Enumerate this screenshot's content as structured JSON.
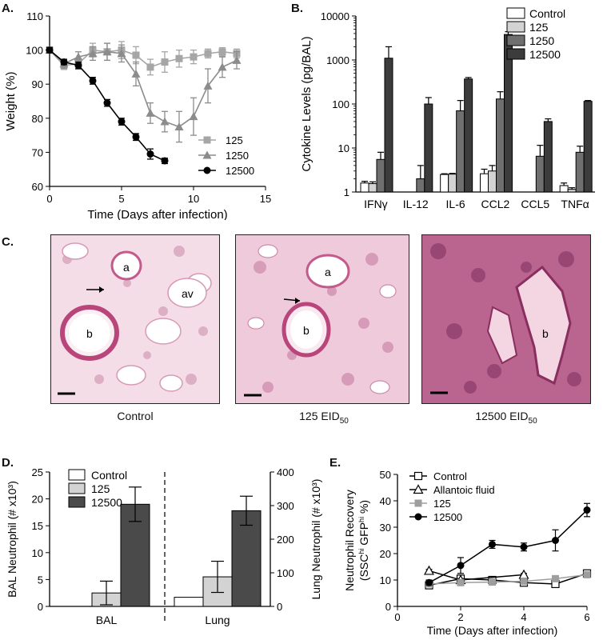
{
  "panels": {
    "A": {
      "label": "A.",
      "chart_data": {
        "type": "line",
        "ylabel": "Weight (%)",
        "xlabel": "Time (Days after infection)",
        "xlim": [
          0,
          15
        ],
        "ylim": [
          60,
          110
        ],
        "xticks": [
          0,
          5,
          10,
          15
        ],
        "yticks": [
          60,
          70,
          80,
          90,
          100,
          110
        ],
        "series": [
          {
            "name": "125",
            "color": "#a6a6a6",
            "marker": "square",
            "x": [
              0,
              1,
              2,
              3,
              4,
              5,
              6,
              7,
              8,
              9,
              10,
              11,
              12,
              13
            ],
            "y": [
              100,
              95.5,
              96,
              100,
              99.5,
              100,
              98.5,
              95,
              96.5,
              97.5,
              98,
              99,
              99.5,
              99
            ],
            "err": [
              0.8,
              1.2,
              1.3,
              2,
              2.5,
              2.5,
              2.5,
              2.3,
              3,
              2.5,
              2,
              1.3,
              1.2,
              1.3
            ]
          },
          {
            "name": "1250",
            "color": "#8c8c8c",
            "marker": "triangle",
            "x": [
              0,
              1,
              2,
              3,
              4,
              5,
              6,
              7,
              8,
              9,
              10,
              11,
              12,
              13
            ],
            "y": [
              100,
              96,
              98,
              99,
              99.5,
              99,
              93,
              81.5,
              79,
              77.5,
              80.5,
              89.5,
              95,
              97
            ],
            "err": [
              0.8,
              1.3,
              1.5,
              2,
              2.5,
              2.5,
              3.5,
              3,
              3,
              4.5,
              5.5,
              5,
              3,
              2.5
            ]
          },
          {
            "name": "12500",
            "color": "#000000",
            "marker": "circle",
            "x": [
              0,
              1,
              2,
              3,
              4,
              5,
              6,
              7,
              8
            ],
            "y": [
              100,
              96.5,
              95.5,
              91,
              84.5,
              79,
              74.5,
              69.5,
              67.5
            ],
            "err": [
              0.8,
              0.8,
              1,
              1,
              1,
              1,
              1,
              1.5,
              0.8
            ]
          }
        ]
      }
    },
    "B": {
      "label": "B.",
      "chart_data": {
        "type": "bar",
        "scale": "log",
        "ylabel": "Cytokine Levels (pg/BAL)",
        "ylim": [
          1,
          10000
        ],
        "yticks": [
          1,
          10,
          100,
          1000,
          10000
        ],
        "categories": [
          "IFNγ",
          "IL-12",
          "IL-6",
          "CCL2",
          "CCL5",
          "TNFα"
        ],
        "series": [
          {
            "name": "Control",
            "color": "#ffffff",
            "values": [
              1.6,
              null,
              2.5,
              2.6,
              null,
              1.4
            ],
            "err": [
              1.75,
              null,
              2.6,
              3.3,
              null,
              1.6
            ]
          },
          {
            "name": "125",
            "color": "#d3d3d3",
            "values": [
              1.55,
              null,
              2.55,
              3,
              null,
              1.15
            ],
            "err": [
              1.7,
              null,
              2.65,
              4,
              null,
              1.25
            ]
          },
          {
            "name": "1250",
            "color": "#6f6f6f",
            "values": [
              5.5,
              2,
              70,
              130,
              6.5,
              8
            ],
            "err": [
              8,
              4,
              120,
              190,
              11.5,
              11
            ]
          },
          {
            "name": "12500",
            "color": "#3c3c3c",
            "values": [
              1100,
              100,
              370,
              3800,
              40,
              115
            ],
            "err": [
              2000,
              140,
              400,
              4400,
              46,
              120
            ]
          }
        ]
      }
    },
    "C": {
      "label": "C.",
      "images": [
        {
          "caption": "Control",
          "labels": [
            "a",
            "av",
            "b"
          ]
        },
        {
          "caption": "125 EID",
          "caption_sub": "50",
          "labels": [
            "a",
            "b"
          ]
        },
        {
          "caption": "12500 EID",
          "caption_sub": "50",
          "labels": [
            "b"
          ]
        }
      ]
    },
    "D": {
      "label": "D.",
      "chart_data": {
        "type": "bar",
        "ylabel_left": "BAL Neutrophil (# x10³)",
        "ylabel_right": "Lung Neutrophil (# x10³)",
        "ylim_left": [
          0,
          25
        ],
        "yticks_left": [
          0,
          5,
          10,
          15,
          20,
          25
        ],
        "ylim_right": [
          0,
          400
        ],
        "yticks_right": [
          0,
          100,
          200,
          300,
          400
        ],
        "groups": [
          "BAL",
          "Lung"
        ],
        "series": [
          {
            "name": "Control",
            "color": "#ffffff",
            "values": [
              0,
              1.7
            ],
            "err": [
              0,
              0
            ]
          },
          {
            "name": "125",
            "color": "#d3d3d3",
            "values": [
              2.5,
              5.5
            ],
            "err": [
              2.2,
              2.9
            ]
          },
          {
            "name": "12500",
            "color": "#4a4a4a",
            "values": [
              19,
              17.8
            ],
            "err": [
              3.2,
              2.7
            ]
          }
        ]
      }
    },
    "E": {
      "label": "E.",
      "chart_data": {
        "type": "line",
        "ylabel_line1": "Neutrophil Recovery",
        "ylabel_line2_parts": [
          "(SSC",
          "hi",
          " GFP",
          "hi",
          " %)"
        ],
        "xlabel": "Time (Days after infection)",
        "xlim": [
          0,
          6
        ],
        "ylim": [
          0,
          50
        ],
        "xticks": [
          0,
          2,
          4,
          6
        ],
        "yticks": [
          0,
          10,
          20,
          30,
          40,
          50
        ],
        "series": [
          {
            "name": "Control",
            "color": "#000000",
            "marker": "open-square",
            "x": [
              1,
              2,
              3,
              4,
              5,
              6
            ],
            "y": [
              8,
              10.5,
              10,
              9,
              8.5,
              12.5
            ],
            "err": [
              0.8,
              1,
              1,
              0.8,
              0.8,
              1
            ]
          },
          {
            "name": "Allantoic fluid",
            "color": "#000000",
            "marker": "open-triangle",
            "x": [
              1,
              2,
              4
            ],
            "y": [
              13.5,
              10,
              12
            ],
            "err": [
              0.5,
              0.5,
              0.5
            ]
          },
          {
            "name": "125",
            "color": "#9e9e9e",
            "marker": "square",
            "x": [
              1,
              2,
              3,
              4,
              5,
              6
            ],
            "y": [
              8.5,
              9,
              9.2,
              9.5,
              10.5,
              12
            ],
            "err": [
              0.8,
              0.8,
              0.8,
              0.8,
              0.8,
              0.8
            ]
          },
          {
            "name": "12500",
            "color": "#000000",
            "marker": "circle",
            "x": [
              1,
              2,
              3,
              4,
              5,
              6
            ],
            "y": [
              9,
              15.5,
              23.5,
              22.5,
              25,
              36.5
            ],
            "err": [
              1,
              3,
              1.5,
              1.5,
              4,
              2.5
            ]
          }
        ]
      }
    }
  }
}
